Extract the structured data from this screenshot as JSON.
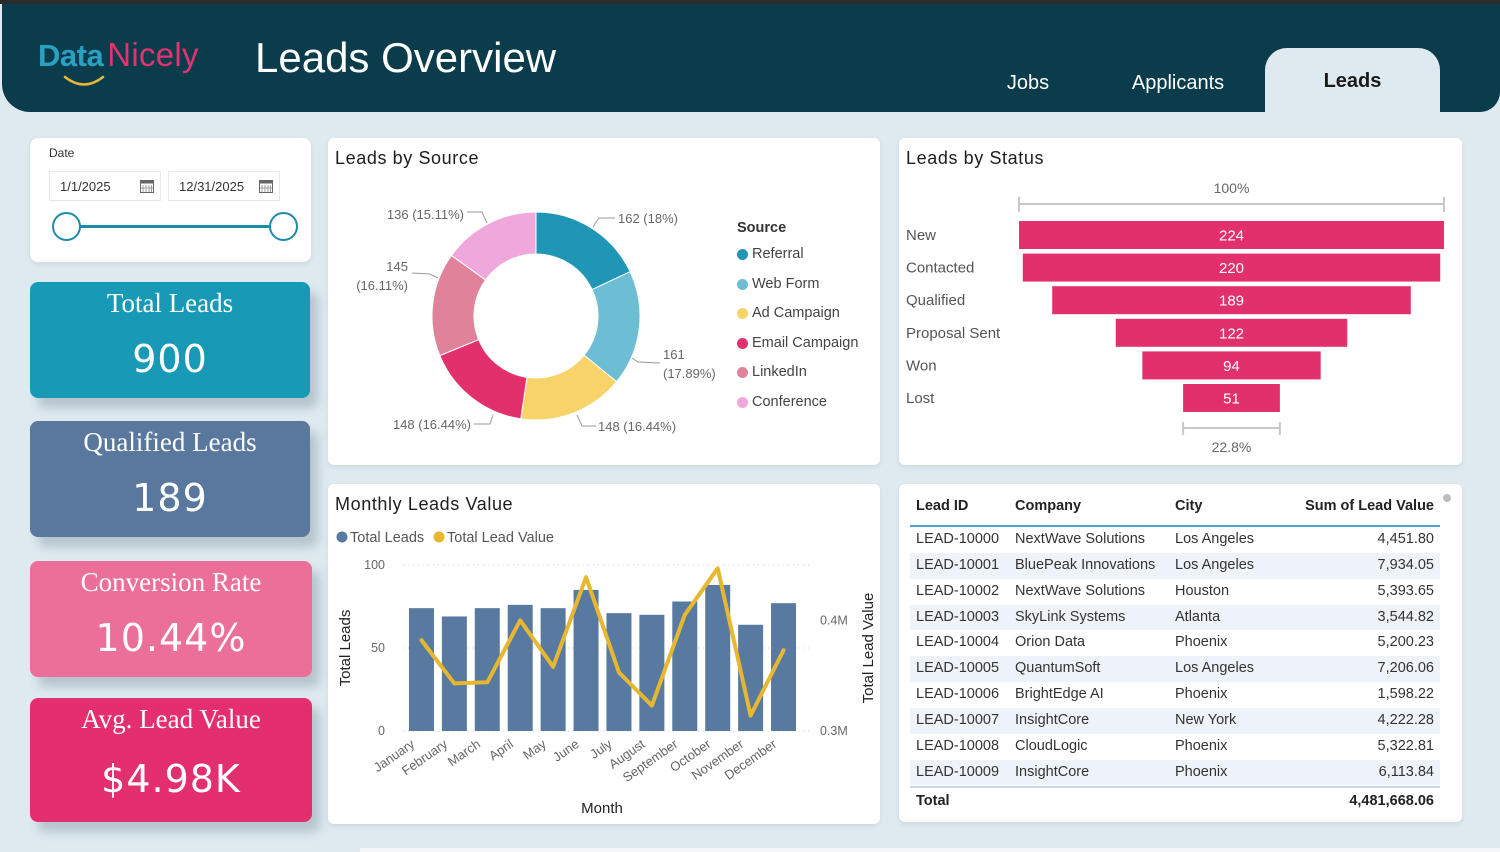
{
  "app": {
    "logo": {
      "part1": "Data",
      "part2": "Nicely"
    },
    "title": "Leads Overview"
  },
  "nav": {
    "tabs": [
      {
        "label": "Jobs",
        "active": false
      },
      {
        "label": "Applicants",
        "active": false
      },
      {
        "label": "Leads",
        "active": true
      }
    ]
  },
  "filters": {
    "date": {
      "label": "Date",
      "start": "1/1/2025",
      "end": "12/31/2025",
      "range_selected_fraction": [
        0,
        1
      ]
    }
  },
  "kpis": [
    {
      "title": "Total Leads",
      "value": "900",
      "color": "#1899b6"
    },
    {
      "title": "Qualified Leads",
      "value": "189",
      "color": "#5a789e"
    },
    {
      "title": "Conversion Rate",
      "value": "10.44%",
      "color": "#ec6f9a"
    },
    {
      "title": "Avg. Lead Value",
      "value": "$4.98K",
      "color": "#e32f6d"
    }
  ],
  "chart_data": [
    {
      "type": "pie",
      "variant": "donut",
      "title": "Leads by Source",
      "legend_title": "Source",
      "legend_position": "right",
      "categories": [
        "Referral",
        "Web Form",
        "Ad Campaign",
        "Email Campaign",
        "LinkedIn",
        "Conference"
      ],
      "values": [
        162,
        161,
        148,
        148,
        145,
        136
      ],
      "percents": [
        18,
        17.89,
        16.44,
        16.44,
        16.11,
        15.11
      ],
      "data_labels": [
        "162 (18%)",
        "161 (17.89%)",
        "148 (16.44%)",
        "148 (16.44%)",
        "145 (16.11%)",
        "136 (15.11%)"
      ],
      "colors": [
        "#1f96b6",
        "#6dbed5",
        "#f8d36a",
        "#e2306d",
        "#e0839a",
        "#f0a7dc"
      ]
    },
    {
      "type": "bar",
      "variant": "funnel",
      "title": "Leads by Status",
      "categories": [
        "New",
        "Contacted",
        "Qualified",
        "Proposal Sent",
        "Won",
        "Lost"
      ],
      "values": [
        224,
        220,
        189,
        122,
        94,
        51
      ],
      "top_label": "100%",
      "bottom_label": "22.8%",
      "color": "#e2306d"
    },
    {
      "type": "bar",
      "variant": "combo-bar-line",
      "title": "Monthly Leads Value",
      "xlabel": "Month",
      "ylabel": "Total Leads",
      "y2label": "Total Lead Value",
      "legend_position": "top-left",
      "grid": true,
      "categories": [
        "January",
        "February",
        "March",
        "April",
        "May",
        "June",
        "July",
        "August",
        "September",
        "October",
        "November",
        "December"
      ],
      "series": [
        {
          "name": "Total Leads",
          "type": "bar",
          "axis": "left",
          "color": "#587aa0",
          "values": [
            74,
            69,
            74,
            76,
            74,
            85,
            71,
            70,
            78,
            88,
            64,
            77
          ]
        },
        {
          "name": "Total Lead Value",
          "type": "line",
          "axis": "right",
          "color": "#e8b730",
          "values": [
            382000,
            343000,
            344000,
            400000,
            358000,
            439000,
            353000,
            323000,
            405000,
            447000,
            314000,
            373000
          ]
        }
      ],
      "ylim": [
        0,
        100
      ],
      "yticks": [
        0,
        50,
        100
      ],
      "ytick_labels": [
        "0",
        "50",
        "100"
      ],
      "y2lim": [
        300000,
        450000
      ],
      "y2ticks": [
        300000,
        400000
      ],
      "y2tick_labels": [
        "0.3M",
        "0.4M"
      ]
    }
  ],
  "table": {
    "columns": [
      "Lead ID",
      "Company",
      "City",
      "Sum of Lead Value"
    ],
    "rows": [
      [
        "LEAD-10000",
        "NextWave Solutions",
        "Los Angeles",
        "4,451.80"
      ],
      [
        "LEAD-10001",
        "BluePeak Innovations",
        "Los Angeles",
        "7,934.05"
      ],
      [
        "LEAD-10002",
        "NextWave Solutions",
        "Houston",
        "5,393.65"
      ],
      [
        "LEAD-10003",
        "SkyLink Systems",
        "Atlanta",
        "3,544.82"
      ],
      [
        "LEAD-10004",
        "Orion Data",
        "Phoenix",
        "5,200.23"
      ],
      [
        "LEAD-10005",
        "QuantumSoft",
        "Los Angeles",
        "7,206.06"
      ],
      [
        "LEAD-10006",
        "BrightEdge AI",
        "Phoenix",
        "1,598.22"
      ],
      [
        "LEAD-10007",
        "InsightCore",
        "New York",
        "4,222.28"
      ],
      [
        "LEAD-10008",
        "CloudLogic",
        "Phoenix",
        "5,322.81"
      ],
      [
        "LEAD-10009",
        "InsightCore",
        "Phoenix",
        "6,113.84"
      ]
    ],
    "total": {
      "label": "Total",
      "value": "4,481,668.06"
    }
  }
}
